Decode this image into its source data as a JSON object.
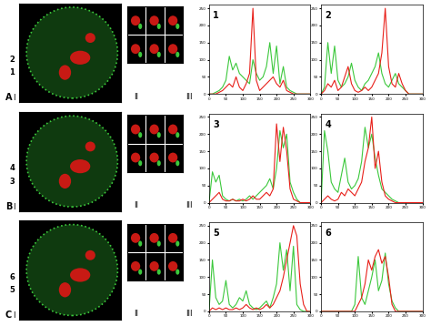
{
  "chart_data": [
    {
      "type": "line",
      "title": "1",
      "xlim": [
        0,
        300
      ],
      "ylim": [
        0,
        260
      ],
      "xticks": [
        0,
        50,
        100,
        150,
        200,
        250,
        300
      ],
      "yticks": [
        0,
        50,
        100,
        150,
        200,
        250
      ],
      "x": [
        0,
        10,
        20,
        30,
        40,
        50,
        60,
        70,
        80,
        90,
        100,
        110,
        120,
        130,
        140,
        150,
        160,
        170,
        180,
        190,
        200,
        210,
        220,
        230,
        240,
        250,
        260,
        270,
        280,
        290,
        300
      ],
      "series": [
        {
          "color": "#3cc83c",
          "values": [
            0,
            0,
            5,
            10,
            20,
            40,
            110,
            70,
            90,
            60,
            50,
            40,
            30,
            100,
            60,
            40,
            50,
            80,
            150,
            60,
            140,
            30,
            80,
            20,
            10,
            5,
            0,
            0,
            0,
            0,
            0
          ]
        },
        {
          "color": "#e8201a",
          "values": [
            0,
            0,
            0,
            5,
            10,
            20,
            30,
            20,
            50,
            20,
            10,
            30,
            60,
            250,
            40,
            10,
            20,
            30,
            40,
            50,
            30,
            20,
            40,
            10,
            5,
            0,
            0,
            0,
            0,
            0,
            0
          ]
        }
      ]
    },
    {
      "type": "line",
      "title": "2",
      "xlim": [
        0,
        300
      ],
      "ylim": [
        0,
        260
      ],
      "xticks": [
        0,
        50,
        100,
        150,
        200,
        250,
        300
      ],
      "yticks": [
        0,
        50,
        100,
        150,
        200,
        250
      ],
      "x": [
        0,
        10,
        20,
        30,
        40,
        50,
        60,
        70,
        80,
        90,
        100,
        110,
        120,
        130,
        140,
        150,
        160,
        170,
        180,
        190,
        200,
        210,
        220,
        230,
        240,
        250,
        260,
        270,
        280,
        290,
        300
      ],
      "series": [
        {
          "color": "#3cc83c",
          "values": [
            0,
            20,
            150,
            60,
            140,
            40,
            20,
            30,
            50,
            90,
            40,
            20,
            10,
            30,
            40,
            60,
            80,
            120,
            60,
            30,
            20,
            40,
            60,
            30,
            20,
            10,
            0,
            0,
            0,
            0,
            0
          ]
        },
        {
          "color": "#e8201a",
          "values": [
            0,
            10,
            30,
            20,
            40,
            10,
            20,
            50,
            80,
            30,
            10,
            5,
            10,
            20,
            10,
            20,
            40,
            60,
            120,
            250,
            80,
            30,
            20,
            60,
            30,
            10,
            0,
            0,
            0,
            0,
            0
          ]
        }
      ]
    },
    {
      "type": "line",
      "title": "3",
      "xlim": [
        0,
        300
      ],
      "ylim": [
        0,
        260
      ],
      "xticks": [
        0,
        50,
        100,
        150,
        200,
        250,
        300
      ],
      "yticks": [
        0,
        50,
        100,
        150,
        200,
        250
      ],
      "x": [
        0,
        10,
        20,
        30,
        40,
        50,
        60,
        70,
        80,
        90,
        100,
        110,
        120,
        130,
        140,
        150,
        160,
        170,
        180,
        190,
        200,
        210,
        220,
        230,
        240,
        250,
        260,
        270,
        280,
        290,
        300
      ],
      "series": [
        {
          "color": "#3cc83c",
          "values": [
            0,
            90,
            60,
            80,
            20,
            10,
            5,
            10,
            5,
            10,
            5,
            10,
            20,
            10,
            20,
            30,
            40,
            50,
            70,
            40,
            100,
            210,
            160,
            200,
            60,
            30,
            10,
            0,
            0,
            0,
            0
          ]
        },
        {
          "color": "#e8201a",
          "values": [
            0,
            10,
            20,
            30,
            10,
            5,
            5,
            10,
            5,
            5,
            10,
            5,
            10,
            20,
            10,
            10,
            20,
            30,
            20,
            40,
            230,
            120,
            220,
            150,
            40,
            10,
            5,
            0,
            0,
            0,
            0
          ]
        }
      ]
    },
    {
      "type": "line",
      "title": "4",
      "xlim": [
        0,
        300
      ],
      "ylim": [
        0,
        260
      ],
      "xticks": [
        0,
        50,
        100,
        150,
        200,
        250,
        300
      ],
      "yticks": [
        0,
        50,
        100,
        150,
        200,
        250
      ],
      "x": [
        0,
        10,
        20,
        30,
        40,
        50,
        60,
        70,
        80,
        90,
        100,
        110,
        120,
        130,
        140,
        150,
        160,
        170,
        180,
        190,
        200,
        210,
        220,
        230,
        240,
        250,
        260,
        270,
        280,
        290,
        300
      ],
      "series": [
        {
          "color": "#3cc83c",
          "values": [
            0,
            210,
            150,
            60,
            40,
            30,
            80,
            130,
            60,
            40,
            50,
            70,
            120,
            220,
            160,
            200,
            130,
            80,
            40,
            30,
            20,
            10,
            5,
            0,
            0,
            0,
            0,
            0,
            0,
            0,
            0
          ]
        },
        {
          "color": "#e8201a",
          "values": [
            0,
            10,
            20,
            10,
            5,
            10,
            30,
            20,
            40,
            30,
            20,
            40,
            60,
            120,
            160,
            250,
            100,
            150,
            60,
            20,
            10,
            5,
            0,
            0,
            0,
            0,
            0,
            0,
            0,
            0,
            0
          ]
        }
      ]
    },
    {
      "type": "line",
      "title": "5",
      "xlim": [
        0,
        300
      ],
      "ylim": [
        0,
        260
      ],
      "xticks": [
        0,
        50,
        100,
        150,
        200,
        250,
        300
      ],
      "yticks": [
        0,
        50,
        100,
        150,
        200,
        250
      ],
      "x": [
        0,
        10,
        20,
        30,
        40,
        50,
        60,
        70,
        80,
        90,
        100,
        110,
        120,
        130,
        140,
        150,
        160,
        170,
        180,
        190,
        200,
        210,
        220,
        230,
        240,
        250,
        260,
        270,
        280,
        290,
        300
      ],
      "series": [
        {
          "color": "#3cc83c",
          "values": [
            0,
            150,
            40,
            20,
            30,
            90,
            20,
            10,
            20,
            40,
            30,
            60,
            20,
            10,
            5,
            10,
            20,
            30,
            10,
            40,
            80,
            200,
            120,
            180,
            60,
            190,
            20,
            5,
            0,
            0,
            0
          ]
        },
        {
          "color": "#e8201a",
          "values": [
            0,
            10,
            5,
            10,
            5,
            10,
            5,
            5,
            10,
            5,
            10,
            20,
            10,
            5,
            10,
            5,
            10,
            20,
            10,
            20,
            40,
            60,
            100,
            150,
            200,
            250,
            220,
            80,
            20,
            0,
            0
          ]
        }
      ]
    },
    {
      "type": "line",
      "title": "6",
      "xlim": [
        0,
        300
      ],
      "ylim": [
        0,
        260
      ],
      "xticks": [
        0,
        50,
        100,
        150,
        200,
        250,
        300
      ],
      "yticks": [
        0,
        50,
        100,
        150,
        200,
        250
      ],
      "x": [
        0,
        10,
        20,
        30,
        40,
        50,
        60,
        70,
        80,
        90,
        100,
        110,
        120,
        130,
        140,
        150,
        160,
        170,
        180,
        190,
        200,
        210,
        220,
        230,
        240,
        250,
        260,
        270,
        280,
        290,
        300
      ],
      "series": [
        {
          "color": "#3cc83c",
          "values": [
            0,
            0,
            0,
            0,
            0,
            0,
            0,
            0,
            0,
            0,
            20,
            160,
            40,
            20,
            60,
            100,
            150,
            60,
            90,
            170,
            80,
            30,
            10,
            0,
            0,
            0,
            0,
            0,
            0,
            0,
            0
          ]
        },
        {
          "color": "#e8201a",
          "values": [
            0,
            0,
            0,
            0,
            0,
            0,
            0,
            0,
            0,
            0,
            0,
            20,
            40,
            80,
            150,
            120,
            160,
            180,
            140,
            160,
            100,
            20,
            0,
            0,
            0,
            0,
            0,
            0,
            0,
            0,
            0
          ]
        }
      ]
    }
  ],
  "image_panels": [
    {
      "label": "A",
      "image_label": "I",
      "thumb_label": "II",
      "chart_label": "III",
      "markers": [
        "2",
        "1"
      ]
    },
    {
      "label": "B",
      "image_label": "I",
      "thumb_label": "II",
      "chart_label": "III",
      "markers": [
        "4",
        "3"
      ]
    },
    {
      "label": "C",
      "image_label": "I",
      "thumb_label": "II",
      "chart_label": "III",
      "markers": [
        "6",
        "5"
      ]
    }
  ]
}
